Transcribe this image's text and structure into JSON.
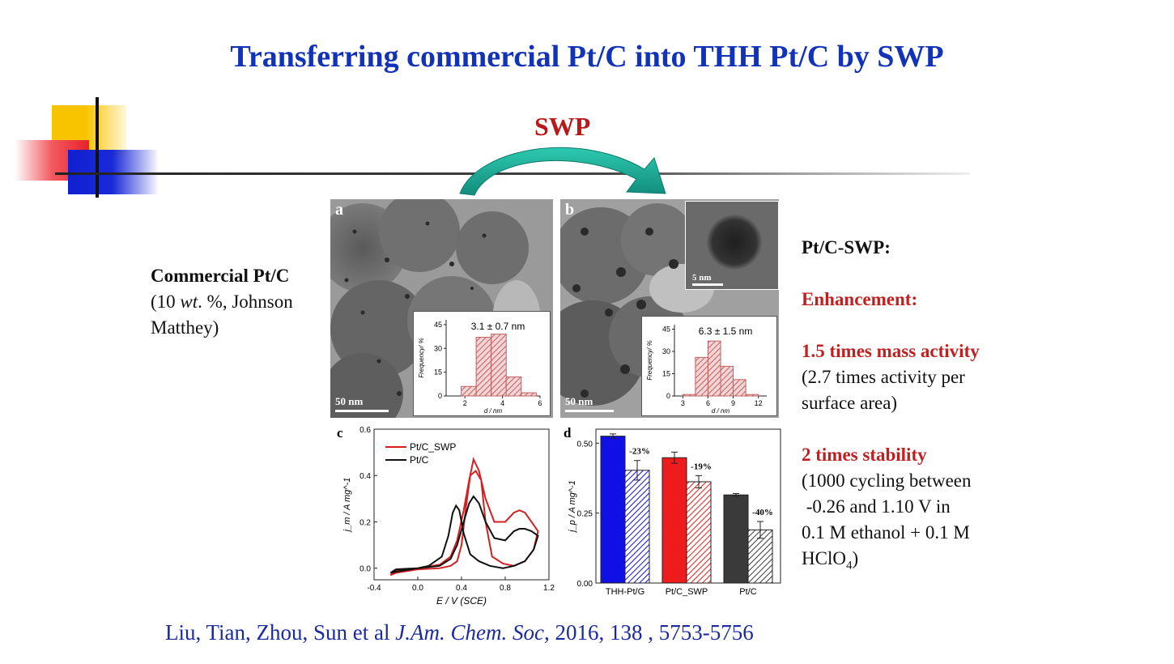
{
  "slide": {
    "title": "Transferring commercial Pt/C into THH Pt/C by SWP",
    "arrow_label": "SWP"
  },
  "left_text": {
    "line1": "Commercial Pt/C",
    "line2_pre": "(10 ",
    "line2_it": "wt",
    "line2_post": ". %, Johnson",
    "line3": "Matthey)"
  },
  "right_text": {
    "heading": "Pt/C-SWP:",
    "enhancement": "Enhancement:",
    "mass_activity": "1.5 times mass activity",
    "mass_detail_1": "(2.7 times activity per",
    "mass_detail_2": "surface area)",
    "stability": "2 times stability",
    "stab_1": "(1000 cycling between",
    "stab_2": " -0.26 and 1.10 V in",
    "stab_3": "0.1 M ethanol + 0.1 M",
    "stab_4_pre": "HClO",
    "stab_4_sub": "4",
    "stab_4_post": ")"
  },
  "citation": {
    "authors": "Liu, Tian, Zhou, Sun et al",
    "journal": " J.Am. Chem. Soc,",
    "details": " 2016, 138 , 5753-5756"
  },
  "panels": {
    "a": {
      "label": "a",
      "scale": "50 nm",
      "size_label": "3.1 ± 0.7 nm"
    },
    "b": {
      "label": "b",
      "scale": "50 nm",
      "inset_scale": "5 nm",
      "size_label": "6.3 ± 1.5 nm"
    },
    "c": {
      "label": "c"
    },
    "d": {
      "label": "d"
    }
  },
  "colors": {
    "title": "#1232b8",
    "accent_red": "#c02020",
    "cite": "#1a2aa0",
    "hist": "#d98a8a",
    "swp_red": "#d42020",
    "blue": "#1010e6",
    "dark": "#3a3a3a"
  },
  "chart_data": [
    {
      "id": "a",
      "type": "bar",
      "title": "3.1 ± 0.7 nm",
      "xlabel": "d / nm",
      "ylabel": "Frequency/ %",
      "xlim": [
        1,
        6
      ],
      "ylim": [
        0,
        48
      ],
      "xticks": [
        2,
        4,
        6
      ],
      "yticks": [
        0,
        15,
        30,
        45
      ],
      "bin_width": 0.8,
      "x": [
        2.2,
        3.0,
        3.8,
        4.6,
        5.4
      ],
      "values": [
        6,
        37,
        39,
        12,
        2
      ]
    },
    {
      "id": "b",
      "type": "bar",
      "title": "6.3 ± 1.5 nm",
      "xlabel": "d / nm",
      "ylabel": "Frequency/ %",
      "xlim": [
        2,
        13
      ],
      "ylim": [
        0,
        48
      ],
      "xticks": [
        3,
        6,
        9,
        12
      ],
      "yticks": [
        0,
        15,
        30,
        45
      ],
      "bin_width": 1.5,
      "x": [
        3.75,
        5.25,
        6.75,
        8.25,
        9.75,
        11.25
      ],
      "values": [
        1,
        26,
        37,
        20,
        11,
        1
      ]
    },
    {
      "id": "c",
      "type": "line",
      "xlabel": "E / V (SCE)",
      "ylabel": "j_m / A mg^-1",
      "xlim": [
        -0.4,
        1.2
      ],
      "ylim": [
        -0.05,
        0.6
      ],
      "xticks": [
        -0.4,
        0.0,
        0.4,
        0.8,
        1.2
      ],
      "xtick_labels": [
        "-0.4",
        "0.0",
        "0.4",
        "0.8",
        "1.2"
      ],
      "yticks": [
        0.0,
        0.2,
        0.4,
        0.6
      ],
      "ytick_labels": [
        "0.0",
        "0.2",
        "0.4",
        "0.6"
      ],
      "legend": [
        "Pt/C_SWP",
        "Pt/C"
      ],
      "series": [
        {
          "name": "Pt/C_SWP",
          "color": "#d42020",
          "x": [
            -0.25,
            -0.2,
            0.0,
            0.2,
            0.3,
            0.36,
            0.42,
            0.47,
            0.51,
            0.56,
            0.62,
            0.7,
            0.8,
            0.88,
            0.93,
            0.98,
            1.04,
            1.1,
            1.06,
            0.98,
            0.88,
            0.78,
            0.68,
            0.62,
            0.58,
            0.53,
            0.48,
            0.44,
            0.4,
            0.36,
            0.3,
            0.2,
            0.0,
            -0.2,
            -0.25
          ],
          "y": [
            -0.03,
            -0.01,
            0.0,
            0.015,
            0.05,
            0.12,
            0.25,
            0.38,
            0.47,
            0.42,
            0.3,
            0.2,
            0.2,
            0.24,
            0.25,
            0.24,
            0.2,
            0.16,
            0.08,
            0.03,
            0.01,
            0.02,
            0.05,
            0.2,
            0.38,
            0.42,
            0.4,
            0.26,
            0.1,
            0.03,
            0.01,
            0.0,
            -0.005,
            -0.02,
            -0.03
          ]
        },
        {
          "name": "Pt/C",
          "color": "#111111",
          "x": [
            -0.25,
            -0.2,
            0.0,
            0.2,
            0.3,
            0.36,
            0.42,
            0.47,
            0.51,
            0.56,
            0.62,
            0.7,
            0.8,
            0.88,
            0.93,
            0.98,
            1.04,
            1.1,
            1.06,
            0.98,
            0.88,
            0.78,
            0.66,
            0.56,
            0.48,
            0.42,
            0.38,
            0.35,
            0.32,
            0.28,
            0.22,
            0.1,
            0.0,
            -0.2,
            -0.25
          ],
          "y": [
            -0.02,
            -0.005,
            0.0,
            0.01,
            0.04,
            0.1,
            0.2,
            0.28,
            0.31,
            0.28,
            0.2,
            0.13,
            0.12,
            0.16,
            0.17,
            0.17,
            0.16,
            0.14,
            0.08,
            0.03,
            0.01,
            0.0,
            0.01,
            0.03,
            0.06,
            0.15,
            0.25,
            0.27,
            0.24,
            0.14,
            0.05,
            0.01,
            0.0,
            -0.015,
            -0.02
          ]
        }
      ]
    },
    {
      "id": "d",
      "type": "bar",
      "ylabel": "j_p / A mg^-1",
      "ylim": [
        0,
        0.55
      ],
      "yticks": [
        0,
        0.25,
        0.5
      ],
      "ytick_labels": [
        "0.00",
        "0.25",
        "0.50"
      ],
      "categories": [
        "THH-Pt/G",
        "Pt/C_SWP",
        "Pt/C"
      ],
      "series": [
        {
          "values": [
            0.525,
            0.448,
            0.315
          ],
          "errors": [
            0.008,
            0.02,
            0.005
          ]
        },
        {
          "values": [
            0.403,
            0.362,
            0.19
          ],
          "errors": [
            0.035,
            0.022,
            0.03
          ]
        }
      ],
      "bar_colors": [
        "#1010e6",
        "#ee1c1c",
        "#3a3a3a"
      ],
      "annotations": [
        "-23%",
        "-19%",
        "-40%"
      ]
    }
  ]
}
